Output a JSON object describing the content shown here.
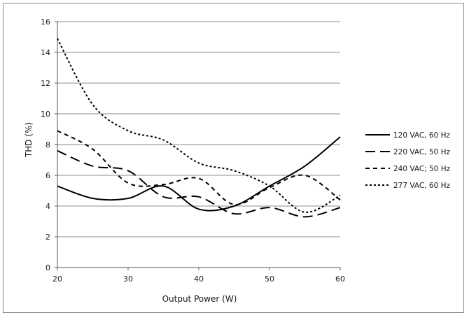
{
  "chart_data": {
    "type": "line",
    "title": "",
    "xlabel": "Output Power (W)",
    "ylabel": "THD (%)",
    "xlim": [
      20,
      60
    ],
    "ylim": [
      0,
      16
    ],
    "xticks": [
      "20",
      "30",
      "40",
      "50",
      "60"
    ],
    "yticks": [
      "0",
      "2",
      "4",
      "6",
      "8",
      "10",
      "12",
      "14",
      "16"
    ],
    "grid": "horizontal",
    "legend_position": "right",
    "series": [
      {
        "name": "120 VAC, 60 Hz",
        "dash": "solid",
        "color": "#000000",
        "x": [
          20,
          25,
          30,
          35,
          40,
          45,
          50,
          55,
          60
        ],
        "y": [
          5.3,
          4.5,
          4.5,
          5.3,
          3.8,
          4.0,
          5.3,
          6.6,
          8.5
        ]
      },
      {
        "name": "220 VAC, 50 Hz",
        "dash": "long-dash",
        "color": "#000000",
        "x": [
          20,
          25,
          30,
          35,
          40,
          45,
          50,
          55,
          60
        ],
        "y": [
          7.6,
          6.6,
          6.3,
          4.6,
          4.6,
          3.5,
          3.9,
          3.3,
          3.9
        ]
      },
      {
        "name": "240 VAC; 50 Hz",
        "dash": "short-dash",
        "color": "#000000",
        "x": [
          20,
          25,
          30,
          35,
          40,
          45,
          50,
          55,
          60
        ],
        "y": [
          8.9,
          7.7,
          5.5,
          5.4,
          5.8,
          4.1,
          5.2,
          6.0,
          4.4
        ]
      },
      {
        "name": "277 VAC, 60 Hz",
        "dash": "dotted",
        "color": "#000000",
        "x": [
          20,
          25,
          30,
          35,
          40,
          45,
          50,
          55,
          60
        ],
        "y": [
          14.9,
          10.6,
          8.9,
          8.3,
          6.8,
          6.3,
          5.3,
          3.6,
          4.7
        ]
      }
    ]
  }
}
